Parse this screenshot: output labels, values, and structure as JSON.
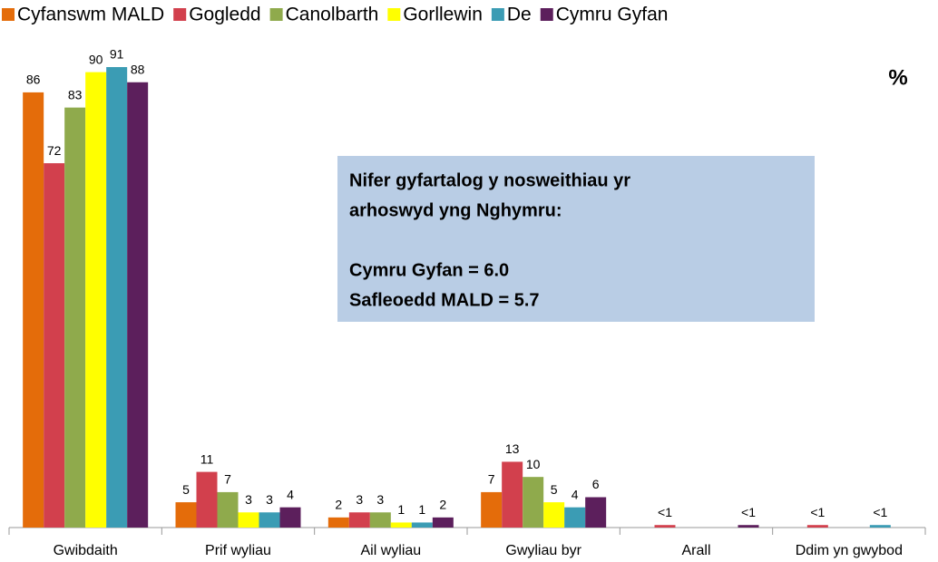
{
  "chart_data": {
    "type": "bar",
    "categories": [
      "Gwibdaith",
      "Prif wyliau",
      "Ail wyliau",
      "Gwyliau byr",
      "Arall",
      "Ddim yn gwybod"
    ],
    "series": [
      {
        "name": "Cyfanswm MALD",
        "color": "#e46c0a",
        "values": [
          86,
          5,
          2,
          7,
          null,
          null
        ]
      },
      {
        "name": "Gogledd",
        "color": "#d2404d",
        "values": [
          72,
          11,
          3,
          13,
          0.5,
          0.5
        ],
        "value_labels": [
          "72",
          "11",
          "3",
          "13",
          "<1",
          "<1"
        ]
      },
      {
        "name": "Canolbarth",
        "color": "#8faa4c",
        "values": [
          83,
          7,
          3,
          10,
          null,
          null
        ]
      },
      {
        "name": "Gorllewin",
        "color": "#ffff00",
        "values": [
          90,
          3,
          1,
          5,
          null,
          null
        ]
      },
      {
        "name": "De",
        "color": "#3b9cb4",
        "values": [
          91,
          3,
          1,
          4,
          null,
          0.5
        ],
        "value_labels": [
          "91",
          "3",
          "1",
          "4",
          null,
          "<1"
        ]
      },
      {
        "name": "Cymru Gyfan",
        "color": "#5c1f5c",
        "values": [
          88,
          4,
          2,
          6,
          0.5,
          null
        ],
        "value_labels": [
          "88",
          "4",
          "2",
          "6",
          "<1",
          null
        ]
      }
    ],
    "unit_label": "%",
    "annotation": [
      "Nifer gyfartalog y nosweithiau yr",
      "arhoswyd yng Nghymru:",
      "Cymru Gyfan = 6.0",
      "Safleoedd MALD = 5.7"
    ]
  }
}
